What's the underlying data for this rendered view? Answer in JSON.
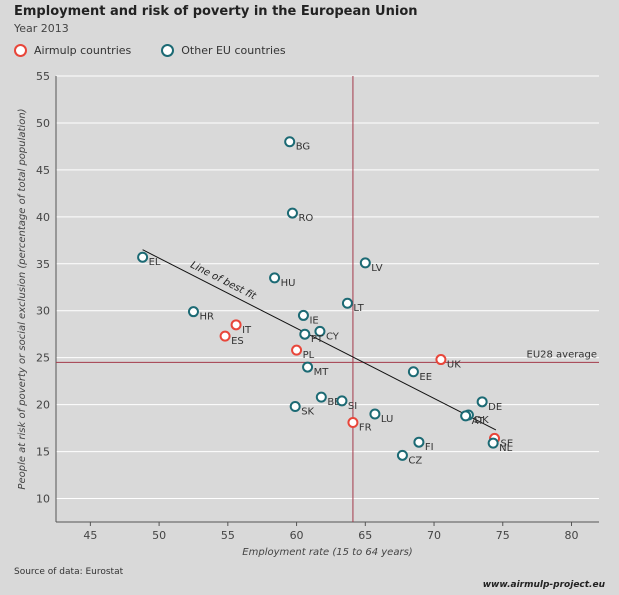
{
  "header": {
    "title": "Employment and risk of poverty in the European Union",
    "subtitle": "Year 2013"
  },
  "legend": [
    {
      "label": "Airmulp countries",
      "color": "#e8463a"
    },
    {
      "label": "Other EU countries",
      "color": "#1c6a74"
    }
  ],
  "colors": {
    "airmulp": "#e8463a",
    "other": "#1c6a74",
    "average_lines": "#a33a4a",
    "fit_line": "#111111",
    "grid": "#ffffff",
    "background": "#d9d9d9"
  },
  "chart_data": {
    "type": "scatter",
    "xlabel": "Employment rate (15 to 64 years)",
    "ylabel": "People at risk of poverty or social exclusion (percentage of total population)",
    "xlim": [
      42.5,
      82
    ],
    "ylim": [
      7.5,
      55
    ],
    "xticks": [
      45,
      50,
      55,
      60,
      65,
      70,
      75,
      80
    ],
    "yticks": [
      10,
      15,
      20,
      25,
      30,
      35,
      40,
      45,
      50,
      55
    ],
    "grid": "horizontal",
    "legend_position": "top-left",
    "eu28_average": {
      "x": 64.1,
      "y": 24.5,
      "label": "EU28 average"
    },
    "best_fit": {
      "label": "Line of best fit",
      "from": [
        48.8,
        36.5
      ],
      "to": [
        74.5,
        17.3
      ]
    },
    "series": [
      {
        "name": "Airmulp countries",
        "points": [
          {
            "label": "IT",
            "x": 55.6,
            "y": 28.5
          },
          {
            "label": "ES",
            "x": 54.8,
            "y": 27.3
          },
          {
            "label": "PL",
            "x": 60.0,
            "y": 25.8
          },
          {
            "label": "UK",
            "x": 70.5,
            "y": 24.8
          },
          {
            "label": "FR",
            "x": 64.1,
            "y": 18.1
          },
          {
            "label": "SE",
            "x": 74.4,
            "y": 16.4
          }
        ]
      },
      {
        "name": "Other EU countries",
        "points": [
          {
            "label": "BG",
            "x": 59.5,
            "y": 48.0
          },
          {
            "label": "RO",
            "x": 59.7,
            "y": 40.4
          },
          {
            "label": "EL",
            "x": 48.8,
            "y": 35.7
          },
          {
            "label": "LV",
            "x": 65.0,
            "y": 35.1
          },
          {
            "label": "HU",
            "x": 58.4,
            "y": 33.5
          },
          {
            "label": "LT",
            "x": 63.7,
            "y": 30.8
          },
          {
            "label": "HR",
            "x": 52.5,
            "y": 29.9
          },
          {
            "label": "IE",
            "x": 60.5,
            "y": 29.5
          },
          {
            "label": "CY",
            "x": 61.7,
            "y": 27.8
          },
          {
            "label": "PT",
            "x": 60.6,
            "y": 27.5
          },
          {
            "label": "MT",
            "x": 60.8,
            "y": 24.0
          },
          {
            "label": "EE",
            "x": 68.5,
            "y": 23.5
          },
          {
            "label": "BE",
            "x": 61.8,
            "y": 20.8
          },
          {
            "label": "SI",
            "x": 63.3,
            "y": 20.4
          },
          {
            "label": "DE",
            "x": 73.5,
            "y": 20.3
          },
          {
            "label": "SK",
            "x": 59.9,
            "y": 19.8
          },
          {
            "label": "LU",
            "x": 65.7,
            "y": 19.0
          },
          {
            "label": "DK",
            "x": 72.5,
            "y": 18.9
          },
          {
            "label": "AT",
            "x": 72.3,
            "y": 18.8
          },
          {
            "label": "FI",
            "x": 68.9,
            "y": 16.0
          },
          {
            "label": "NL",
            "x": 74.3,
            "y": 15.9
          },
          {
            "label": "CZ",
            "x": 67.7,
            "y": 14.6
          }
        ]
      }
    ]
  },
  "footer": {
    "source": "Source of data: Eurostat",
    "url": "www.airmulp-project.eu"
  }
}
